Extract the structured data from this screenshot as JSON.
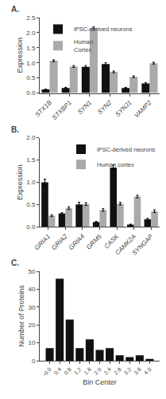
{
  "chart_data": [
    {
      "type": "bar",
      "title": "A.",
      "categories": [
        "STX1B",
        "STXBP1",
        "SYN1",
        "SYN2",
        "SYNJ1",
        "VAMP2"
      ],
      "series": [
        {
          "name": "iPSC-derived neurons",
          "color": "#111111",
          "values": [
            0.12,
            0.17,
            0.87,
            0.96,
            0.17,
            0.32
          ],
          "errors": [
            0.01,
            0.02,
            0.04,
            0.04,
            0.02,
            0.03
          ]
        },
        {
          "name": "Human\nCortex",
          "color": "#aaaaaa",
          "values": [
            1.07,
            0.88,
            2.15,
            0.7,
            0.54,
            0.99
          ],
          "errors": [
            0.03,
            0.03,
            0.04,
            0.03,
            0.03,
            0.03
          ]
        }
      ],
      "ylabel": "Expression",
      "ylim": [
        0,
        2.5
      ],
      "yticks": [
        {
          "value": 0,
          "label": "0.0"
        },
        0.5,
        {
          "value": 1,
          "label": "1.0"
        },
        1.5,
        {
          "value": 2,
          "label": "2.0"
        },
        2.5
      ],
      "legend": "upper left",
      "grid": false
    },
    {
      "type": "bar",
      "title": "B.",
      "categories": [
        "GRIA1",
        "GRIA2",
        "GRIA4",
        "GRM5",
        "CASK",
        "CAMK2A",
        "SYNGAP"
      ],
      "series": [
        {
          "name": "iPSC-derived neurons",
          "color": "#111111",
          "values": [
            1.0,
            0.3,
            0.5,
            0.11,
            1.33,
            0.05,
            0.17
          ],
          "errors": [
            0.07,
            0.02,
            0.05,
            0.01,
            0.06,
            0.01,
            0.02
          ]
        },
        {
          "name": "Human cortex",
          "color": "#aaaaaa",
          "values": [
            0.25,
            0.42,
            0.51,
            0.38,
            0.52,
            0.68,
            0.35
          ],
          "errors": [
            0.02,
            0.03,
            0.03,
            0.03,
            0.03,
            0.03,
            0.03
          ]
        }
      ],
      "ylabel": "Expression",
      "ylim": [
        0,
        2
      ],
      "yticks": [
        {
          "value": 0,
          "label": "0.0"
        },
        0.5,
        {
          "value": 1,
          "label": "1.0"
        },
        1.5,
        {
          "value": 2,
          "label": "2.0"
        }
      ],
      "legend": "upper right",
      "grid": false
    },
    {
      "type": "bar",
      "title": "C.",
      "x": [
        0.0,
        0.4,
        0.8,
        1.2,
        1.6,
        2.0,
        2.4,
        2.8,
        3.2,
        3.6,
        4.0
      ],
      "values": [
        7,
        46,
        23,
        7,
        12,
        6,
        7,
        3,
        2,
        3,
        1
      ],
      "color": "#111111",
      "xlabel": "Bin Center",
      "ylabel": "Number of Proteins",
      "xlim": [
        -0.4,
        4.4
      ],
      "xticks": [
        {
          "value": 0,
          "label": "-0.0"
        },
        0.4,
        0.8,
        1.2,
        1.6,
        {
          "value": 2,
          "label": "2.0"
        },
        2.4,
        2.8,
        3.2,
        3.6,
        {
          "value": 4,
          "label": "4.0"
        }
      ],
      "ylim": [
        0,
        50
      ],
      "yticks": [
        0,
        10,
        20,
        30,
        40,
        50
      ],
      "grid": false
    }
  ]
}
